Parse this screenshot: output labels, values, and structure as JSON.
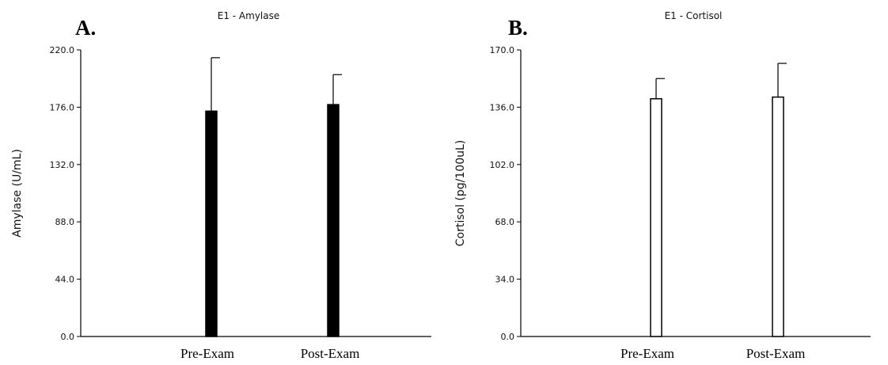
{
  "chart_data": [
    {
      "type": "bar",
      "panel_letter": "A.",
      "title": "E1 - Amylase",
      "xlabel": "",
      "ylabel": "Amylase (U/mL)",
      "ylim": [
        0,
        220
      ],
      "yticks": [
        "0.0",
        "44.0",
        "88.0",
        "132.0",
        "176.0",
        "220.0"
      ],
      "categories": [
        "Pre-Exam",
        "Post-Exam"
      ],
      "values": [
        173,
        178
      ],
      "error_upper": [
        214,
        201
      ],
      "bar_color": "#000000",
      "bar_fill": "filled",
      "grid": false
    },
    {
      "type": "bar",
      "panel_letter": "B.",
      "title": "E1 - Cortisol",
      "xlabel": "",
      "ylabel": "Cortisol (pg/100uL)",
      "ylim": [
        0,
        170
      ],
      "yticks": [
        "0.0",
        "34.0",
        "68.0",
        "102.0",
        "136.0",
        "170.0"
      ],
      "categories": [
        "Pre-Exam",
        "Post-Exam"
      ],
      "values": [
        141,
        142
      ],
      "error_upper": [
        153,
        162
      ],
      "bar_color": "#ffffff",
      "bar_fill": "hollow",
      "grid": false
    }
  ]
}
